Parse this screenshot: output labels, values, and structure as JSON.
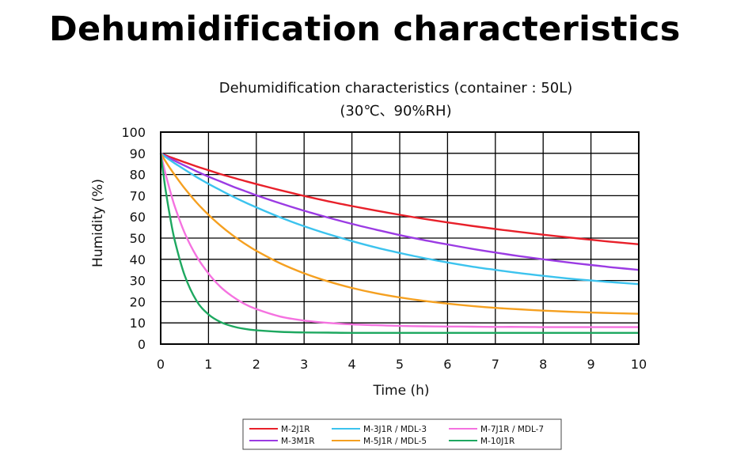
{
  "page": {
    "title": "Dehumidification characteristics"
  },
  "chart_data": {
    "type": "line",
    "title": "Dehumidification characteristics (container : 50L)",
    "subtitle": "(30℃、90%RH)",
    "xlabel": "Time (h)",
    "ylabel": "Humidity (%)",
    "xlim": [
      0,
      10
    ],
    "ylim": [
      0,
      100
    ],
    "xticks": [
      "0",
      "1",
      "2",
      "3",
      "4",
      "5",
      "6",
      "7",
      "8",
      "9",
      "10"
    ],
    "yticks": [
      "0",
      "10",
      "20",
      "30",
      "40",
      "50",
      "60",
      "70",
      "80",
      "90",
      "100"
    ],
    "grid": true,
    "legend_position": "bottom-center",
    "x": [
      0,
      0.1,
      0.2,
      0.3,
      0.5,
      0.75,
      1,
      1.25,
      1.5,
      1.75,
      2,
      2.5,
      3,
      3.5,
      4,
      4.5,
      5,
      5.5,
      6,
      6.5,
      7,
      7.5,
      8,
      8.5,
      9,
      9.5,
      10
    ],
    "series": [
      {
        "name": "M-2J1R",
        "color": "#e8202a",
        "values": [
          90,
          89.1,
          88.2,
          87.4,
          85.8,
          83.8,
          82.0,
          80.2,
          78.6,
          77.0,
          75.5,
          72.6,
          69.9,
          67.4,
          65.1,
          63.0,
          61.0,
          59.1,
          57.4,
          55.8,
          54.3,
          52.9,
          51.6,
          50.4,
          49.2,
          48.1,
          47.1
        ]
      },
      {
        "name": "M-3M1R",
        "color": "#9b3be3",
        "values": [
          90,
          88.7,
          87.5,
          86.4,
          84.2,
          81.5,
          79.0,
          76.7,
          74.4,
          72.3,
          70.2,
          66.4,
          62.9,
          59.7,
          56.7,
          54.0,
          51.4,
          49.1,
          47.0,
          45.0,
          43.2,
          41.5,
          40.0,
          38.6,
          37.3,
          36.1,
          35.0
        ]
      },
      {
        "name": "M-3J1R / MDL-3",
        "color": "#3cc3ee",
        "values": [
          90,
          88.3,
          86.7,
          85.2,
          82.3,
          78.8,
          75.6,
          72.6,
          69.7,
          67.0,
          64.5,
          59.8,
          55.6,
          51.9,
          48.6,
          45.6,
          43.0,
          40.6,
          38.5,
          36.6,
          35.0,
          33.5,
          32.2,
          31.0,
          30.0,
          29.1,
          28.3
        ]
      },
      {
        "name": "M-5J1R / MDL-5",
        "color": "#f5a020",
        "values": [
          90,
          86.3,
          82.8,
          79.6,
          73.5,
          66.8,
          61.0,
          55.9,
          51.4,
          47.5,
          44.0,
          38.1,
          33.4,
          29.6,
          26.5,
          24.0,
          22.0,
          20.4,
          19.1,
          18.0,
          17.1,
          16.4,
          15.8,
          15.3,
          14.9,
          14.6,
          14.3
        ]
      },
      {
        "name": "M-7J1R / MDL-7",
        "color": "#f572e0",
        "values": [
          90,
          80.5,
          72.1,
          64.6,
          52.5,
          41.4,
          33.3,
          27.0,
          22.5,
          19.0,
          16.5,
          13.0,
          11.1,
          10.0,
          9.3,
          8.9,
          8.6,
          8.4,
          8.3,
          8.2,
          8.1,
          8.1,
          8.0,
          8.0,
          8.0,
          8.0,
          8.0
        ]
      },
      {
        "name": "M-10J1R",
        "color": "#1ea860",
        "values": [
          90,
          73.2,
          59.5,
          48.4,
          32.5,
          20.4,
          14.0,
          10.4,
          8.4,
          7.2,
          6.5,
          5.8,
          5.5,
          5.4,
          5.3,
          5.3,
          5.3,
          5.3,
          5.3,
          5.3,
          5.3,
          5.3,
          5.3,
          5.3,
          5.3,
          5.3,
          5.3
        ]
      }
    ],
    "legend_order": [
      "M-2J1R",
      "M-3J1R / MDL-3",
      "M-7J1R / MDL-7",
      "M-3M1R",
      "M-5J1R / MDL-5",
      "M-10J1R"
    ]
  }
}
